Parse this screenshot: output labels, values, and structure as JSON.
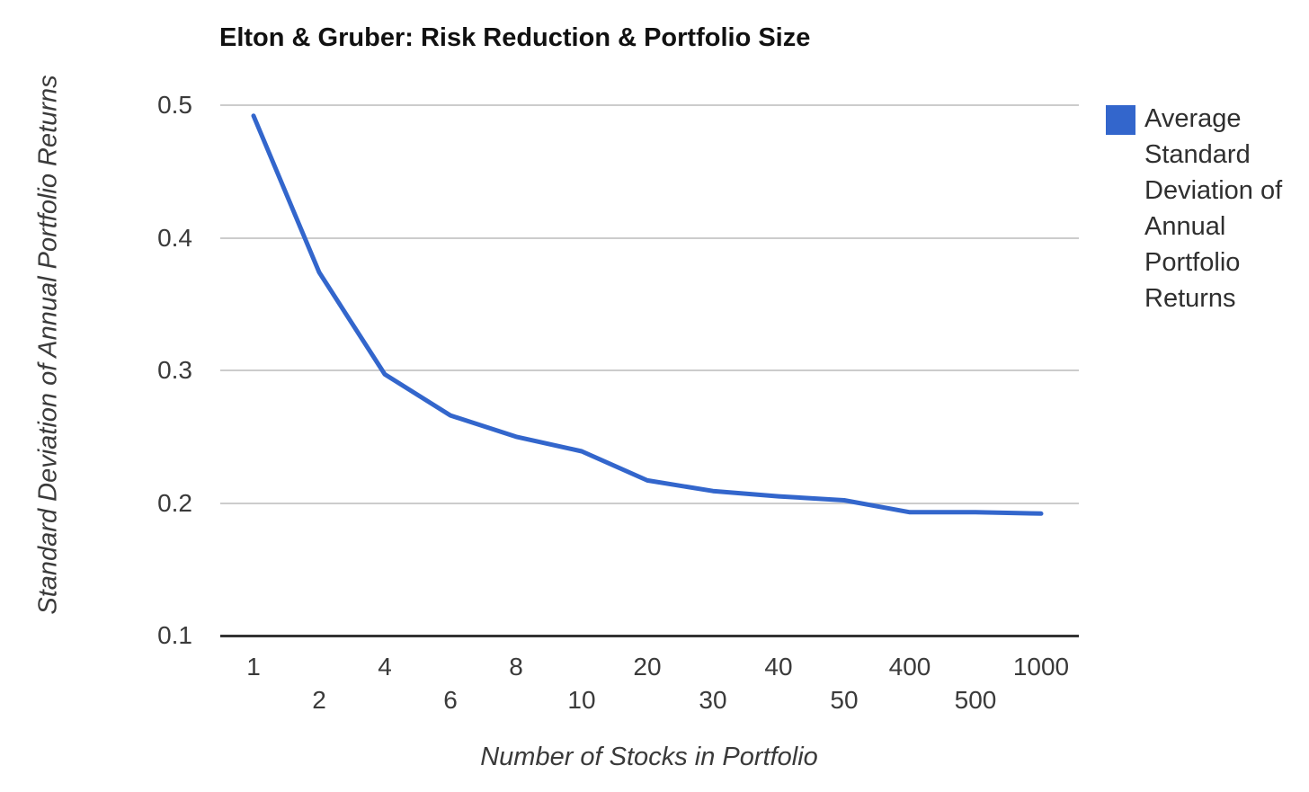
{
  "chart_data": {
    "type": "line",
    "title": "Elton & Gruber: Risk Reduction & Portfolio Size",
    "xlabel": "Number of Stocks in Portfolio",
    "ylabel": "Standard Deviation of Annual Portfolio Returns",
    "categories": [
      "1",
      "2",
      "4",
      "6",
      "8",
      "10",
      "20",
      "30",
      "40",
      "50",
      "400",
      "500",
      "1000"
    ],
    "series": [
      {
        "name": "Average Standard Deviation of Annual Portfolio Returns",
        "color": "#3366CC",
        "values": [
          0.492,
          0.374,
          0.297,
          0.266,
          0.25,
          0.239,
          0.217,
          0.209,
          0.205,
          0.202,
          0.193,
          0.193,
          0.192
        ]
      }
    ],
    "ylim": [
      0.1,
      0.5
    ],
    "yticks": [
      0.5,
      0.4,
      0.3,
      0.2,
      0.1
    ],
    "ytick_labels": [
      "0.5",
      "0.4",
      "0.3",
      "0.2",
      "0.1"
    ],
    "grid": true,
    "legend_position": "right",
    "x_axis_type": "category-staggered-labels",
    "colors": {
      "gridline": "#cccccc",
      "axis_line": "#333333",
      "tick_text": "#3a3a3a",
      "title_text": "#111111"
    }
  }
}
